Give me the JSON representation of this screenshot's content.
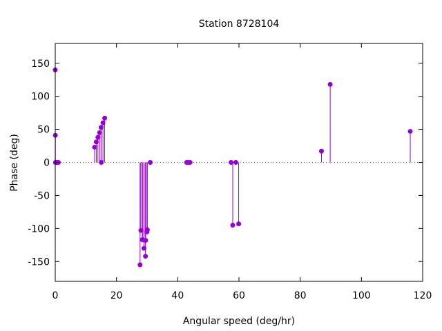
{
  "chart_data": {
    "type": "scatter",
    "style": "impulses-with-points",
    "title": "Station 8728104",
    "xlabel": "Angular speed (deg/hr)",
    "ylabel": "Phase (deg)",
    "xlim": [
      0,
      120
    ],
    "ylim": [
      -180,
      180
    ],
    "xticks": [
      0,
      20,
      40,
      60,
      80,
      100,
      120
    ],
    "yticks": [
      -150,
      -100,
      -50,
      0,
      50,
      100,
      150
    ],
    "zero_line": "dotted",
    "grid": false,
    "series_color": "#9400d3",
    "points": [
      {
        "x": 0.0,
        "y": 140
      },
      {
        "x": 0.04,
        "y": 41
      },
      {
        "x": 0.08,
        "y": 0
      },
      {
        "x": 0.5,
        "y": 0
      },
      {
        "x": 1.0,
        "y": 0
      },
      {
        "x": 12.85,
        "y": 23
      },
      {
        "x": 13.4,
        "y": 31
      },
      {
        "x": 13.94,
        "y": 38
      },
      {
        "x": 14.5,
        "y": 45
      },
      {
        "x": 14.96,
        "y": 53
      },
      {
        "x": 15.04,
        "y": 0
      },
      {
        "x": 15.59,
        "y": 60
      },
      {
        "x": 16.14,
        "y": 67
      },
      {
        "x": 27.7,
        "y": -155
      },
      {
        "x": 27.97,
        "y": -103
      },
      {
        "x": 28.44,
        "y": -117
      },
      {
        "x": 28.51,
        "y": -117
      },
      {
        "x": 28.98,
        "y": -130
      },
      {
        "x": 29.46,
        "y": -142
      },
      {
        "x": 29.53,
        "y": -118
      },
      {
        "x": 29.96,
        "y": -105
      },
      {
        "x": 30.08,
        "y": -102
      },
      {
        "x": 31.02,
        "y": 0
      },
      {
        "x": 42.93,
        "y": 0
      },
      {
        "x": 43.48,
        "y": 0
      },
      {
        "x": 44.03,
        "y": 0
      },
      {
        "x": 57.42,
        "y": 0
      },
      {
        "x": 57.97,
        "y": -95
      },
      {
        "x": 58.98,
        "y": 0
      },
      {
        "x": 59.9,
        "y": -93
      },
      {
        "x": 86.95,
        "y": 17
      },
      {
        "x": 89.8,
        "y": 118
      },
      {
        "x": 115.94,
        "y": 47
      }
    ]
  }
}
